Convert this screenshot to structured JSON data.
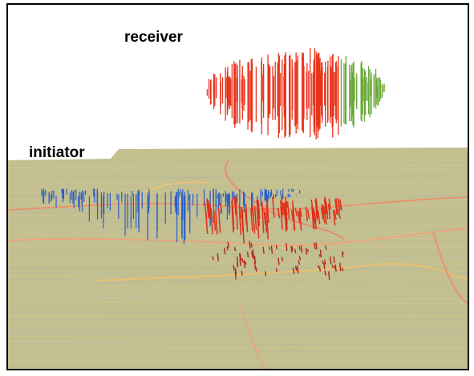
{
  "labels": {
    "receiver": "receiver",
    "initiator": "initiator"
  }
}
